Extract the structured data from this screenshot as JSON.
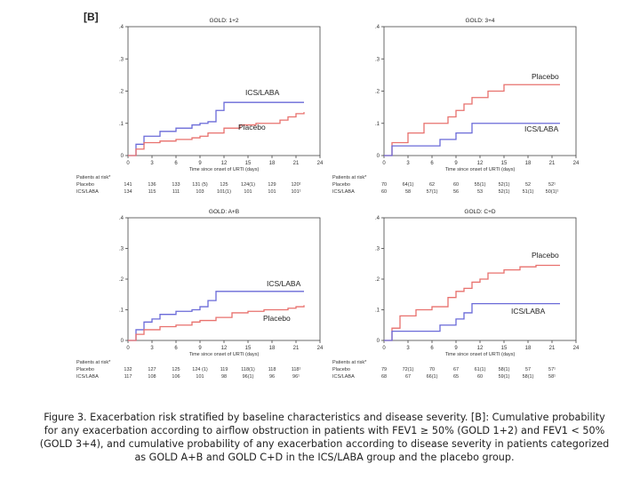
{
  "panel_label": "[B]",
  "caption": "Figure 3. Exacerbation risk stratified by baseline characteristics and disease severity. [B]: Cumulative probability for any exacerbation according to airflow obstruction in patients with FEV1 ≥ 50% (GOLD 1+2) and FEV1 < 50% (GOLD 3+4), and cumulative probability of any exacerbation according to disease severity in patients categorized as GOLD A+B and GOLD C+D in the ICS/LABA group and the placebo group.",
  "colors": {
    "placebo": "#e8716d",
    "ics_laba": "#6a6ad8",
    "axis": "#444444"
  },
  "chart_data": [
    {
      "type": "line",
      "title": "GOLD: 1+2",
      "xlabel": "Time since onset of URTI (days)",
      "xlim": [
        0,
        24
      ],
      "ylim": [
        0,
        0.4
      ],
      "xticks": [
        "0",
        "3",
        "6",
        "9",
        "12",
        "15",
        "18",
        "21",
        "24"
      ],
      "yticks": [
        "0",
        ".1",
        ".2",
        ".3",
        ".4"
      ],
      "series": [
        {
          "name": "ICS/LABA",
          "x": [
            0,
            1,
            2,
            4,
            6,
            8,
            9,
            10,
            11,
            12,
            22
          ],
          "y": [
            0,
            0.035,
            0.06,
            0.075,
            0.085,
            0.095,
            0.1,
            0.105,
            0.14,
            0.165,
            0.165
          ]
        },
        {
          "name": "Placebo",
          "x": [
            0,
            1,
            2,
            4,
            6,
            8,
            9,
            10,
            12,
            14,
            16,
            19,
            20,
            21,
            22
          ],
          "y": [
            0,
            0.02,
            0.04,
            0.045,
            0.05,
            0.055,
            0.06,
            0.07,
            0.085,
            0.095,
            0.1,
            0.11,
            0.12,
            0.13,
            0.135
          ]
        }
      ],
      "risk_table": {
        "header": "Patients at risk*",
        "rows": [
          {
            "label": "Placebo",
            "values": [
              "141",
              "136",
              "133",
              "131 (5)",
              "125",
              "124(1)",
              "129",
              "120¹"
            ]
          },
          {
            "label": "ICS/LABA",
            "values": [
              "134",
              "115",
              "111",
              "103",
              "101(1)",
              "101",
              "101",
              "101¹"
            ]
          }
        ]
      }
    },
    {
      "type": "line",
      "title": "GOLD: 3+4",
      "xlabel": "Time since onset of URTI (days)",
      "xlim": [
        0,
        24
      ],
      "ylim": [
        0,
        0.4
      ],
      "xticks": [
        "0",
        "3",
        "6",
        "9",
        "12",
        "15",
        "18",
        "21",
        "24"
      ],
      "yticks": [
        "0",
        ".1",
        ".2",
        ".3",
        ".4"
      ],
      "series": [
        {
          "name": "Placebo",
          "x": [
            0,
            1,
            3,
            5,
            8,
            9,
            10,
            11,
            13,
            15,
            22
          ],
          "y": [
            0,
            0.04,
            0.07,
            0.1,
            0.12,
            0.14,
            0.16,
            0.18,
            0.2,
            0.22,
            0.22
          ]
        },
        {
          "name": "ICS/LABA",
          "x": [
            0,
            1,
            7,
            9,
            11,
            22
          ],
          "y": [
            0,
            0.03,
            0.05,
            0.07,
            0.1,
            0.1
          ]
        }
      ],
      "risk_table": {
        "header": "Patients at risk*",
        "rows": [
          {
            "label": "Placebo",
            "values": [
              "70",
              "64(1)",
              "62",
              "60",
              "55(1)",
              "52(1)",
              "52",
              "52¹"
            ]
          },
          {
            "label": "ICS/LABA",
            "values": [
              "60",
              "58",
              "57(1)",
              "56",
              "53",
              "52(1)",
              "51(1)",
              "50(1)¹"
            ]
          }
        ]
      }
    },
    {
      "type": "line",
      "title": "GOLD: A+B",
      "xlabel": "Time since onset of URTI (days)",
      "xlim": [
        0,
        24
      ],
      "ylim": [
        0,
        0.4
      ],
      "xticks": [
        "0",
        "3",
        "6",
        "9",
        "12",
        "15",
        "18",
        "21",
        "24"
      ],
      "yticks": [
        "0",
        ".1",
        ".2",
        ".3",
        ".4"
      ],
      "series": [
        {
          "name": "ICS/LABA",
          "x": [
            0,
            1,
            2,
            3,
            4,
            6,
            8,
            9,
            10,
            11,
            22
          ],
          "y": [
            0,
            0.035,
            0.06,
            0.07,
            0.085,
            0.095,
            0.1,
            0.11,
            0.13,
            0.16,
            0.16
          ]
        },
        {
          "name": "Placebo",
          "x": [
            0,
            1,
            2,
            4,
            6,
            8,
            9,
            11,
            13,
            15,
            17,
            20,
            21,
            22
          ],
          "y": [
            0,
            0.02,
            0.035,
            0.045,
            0.05,
            0.06,
            0.065,
            0.075,
            0.09,
            0.095,
            0.1,
            0.105,
            0.11,
            0.115
          ]
        }
      ],
      "risk_table": {
        "header": "Patients at risk*",
        "rows": [
          {
            "label": "Placebo",
            "values": [
              "132",
              "127",
              "125",
              "124 (1)",
              "119",
              "118(1)",
              "118",
              "118¹"
            ]
          },
          {
            "label": "ICS/LABA",
            "values": [
              "117",
              "108",
              "106",
              "101",
              "98",
              "96(1)",
              "96",
              "96¹"
            ]
          }
        ]
      }
    },
    {
      "type": "line",
      "title": "GOLD: C+D",
      "xlabel": "Time since onset of URTI (days)",
      "xlim": [
        0,
        24
      ],
      "ylim": [
        0,
        0.4
      ],
      "xticks": [
        "0",
        "3",
        "6",
        "9",
        "12",
        "15",
        "18",
        "21",
        "24"
      ],
      "yticks": [
        "0",
        ".1",
        ".2",
        ".3",
        ".4"
      ],
      "series": [
        {
          "name": "Placebo",
          "x": [
            0,
            1,
            2,
            4,
            6,
            8,
            9,
            10,
            11,
            12,
            13,
            15,
            17,
            19,
            22
          ],
          "y": [
            0,
            0.04,
            0.08,
            0.1,
            0.11,
            0.14,
            0.16,
            0.17,
            0.19,
            0.2,
            0.22,
            0.23,
            0.24,
            0.245,
            0.245
          ]
        },
        {
          "name": "ICS/LABA",
          "x": [
            0,
            1,
            7,
            9,
            10,
            11,
            22
          ],
          "y": [
            0,
            0.03,
            0.05,
            0.07,
            0.09,
            0.12,
            0.12
          ]
        }
      ],
      "risk_table": {
        "header": "Patients at risk*",
        "rows": [
          {
            "label": "Placebo",
            "values": [
              "79",
              "72(1)",
              "70",
              "67",
              "61(1)",
              "58(1)",
              "57",
              "57¹"
            ]
          },
          {
            "label": "ICS/LABA",
            "values": [
              "68",
              "67",
              "66(1)",
              "65",
              "60",
              "59(1)",
              "58(1)",
              "58¹"
            ]
          }
        ]
      }
    }
  ]
}
